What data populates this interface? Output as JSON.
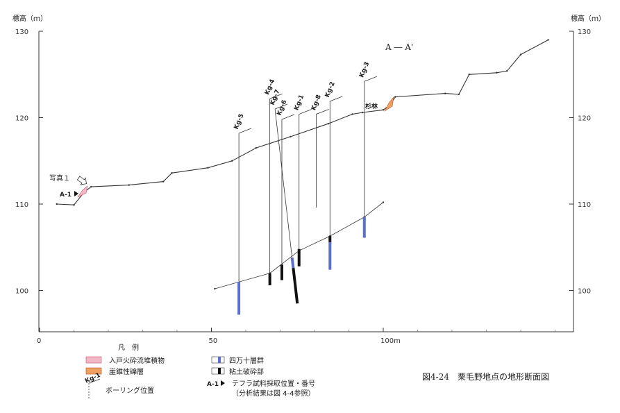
{
  "y_axis_label_left": "標高（ｍ）",
  "y_axis_label_right": "標高（ｍ）",
  "y_ticks": [
    "130",
    "120",
    "110",
    "100"
  ],
  "x_ticks": [
    "0",
    "50",
    "100m"
  ],
  "section_label": "A ― A'",
  "photo_label": "写真１",
  "sample_label": "A-1",
  "place_label": "杉林",
  "boreholes": [
    {
      "id": "Kg-5",
      "x": 58,
      "top": 118.2,
      "bottom": 97.2,
      "blue": [
        101,
        97.2
      ],
      "black": []
    },
    {
      "id": "Kg-4",
      "x": 67,
      "top": 122.2,
      "bottom": 100.6,
      "blue": [],
      "black": [
        102,
        100.6
      ]
    },
    {
      "id": "Kg-7",
      "x": 68.5,
      "top": 121.0,
      "bottom": 98.5,
      "blue": [
        103.8,
        102.6
      ],
      "black": [
        102.6,
        98.5
      ],
      "inclined_to": 75
    },
    {
      "id": "Kg-6",
      "x": 70.5,
      "top": 119.8,
      "bottom": 101.2,
      "blue": [],
      "black": [
        103,
        101.2
      ]
    },
    {
      "id": "Kg-1",
      "x": 75.5,
      "top": 120.4,
      "bottom": 102.8,
      "blue": [],
      "black": [
        104.8,
        102.8
      ]
    },
    {
      "id": "Kg-8",
      "x": 80.5,
      "top": 120.4,
      "bottom": 109.6,
      "blue": [],
      "black": []
    },
    {
      "id": "Kg-2",
      "x": 84.5,
      "top": 121.9,
      "bottom": 102.4,
      "blue": [
        105.6,
        102.4
      ],
      "black": [
        106.3,
        105.6
      ]
    },
    {
      "id": "Kg-3",
      "x": 94.5,
      "top": 124.2,
      "bottom": 106.1,
      "blue": [
        108.5,
        106.1
      ],
      "black": []
    }
  ],
  "legend": {
    "title": "凡　例",
    "items": [
      {
        "key": "pumice_flow",
        "label": "入戸火砕流堆積物",
        "color": "#f2b8c6"
      },
      {
        "key": "talus",
        "label": "崖錐性礫層",
        "color": "#f0a060"
      },
      {
        "key": "boring",
        "label": "ボーリング位置"
      },
      {
        "key": "shimanto",
        "label": "四万十層群",
        "color": "#5a6fd0"
      },
      {
        "key": "clay",
        "label": "粘土破砕部",
        "color": "#111111"
      },
      {
        "key": "tephra",
        "label": "テフラ試料採取位置・番号"
      },
      {
        "key": "tephra_note",
        "label": "（分析結果は図 4-4参照）"
      }
    ]
  },
  "caption": "図4-24　栗毛野地点の地形断面図",
  "chart_data": {
    "type": "line",
    "xlabel": "",
    "ylabel": "標高（ｍ）",
    "xlim": [
      0,
      150
    ],
    "ylim": [
      96,
      131
    ],
    "series": [
      {
        "x": [
          5,
          10,
          13,
          15,
          26,
          36,
          38.5,
          49,
          56,
          63,
          73,
          84,
          91,
          94,
          100,
          102,
          103.5,
          118,
          122,
          125,
          133,
          136,
          140,
          148
        ],
        "y": [
          110.0,
          109.9,
          111.4,
          112.0,
          112.2,
          112.6,
          113.6,
          114.2,
          115.0,
          116.5,
          117.8,
          119.3,
          120.4,
          120.6,
          120.9,
          121.5,
          122.4,
          122.8,
          122.7,
          125.0,
          125.2,
          125.4,
          127.3,
          129.0
        ]
      },
      {
        "x": [
          51,
          67,
          75.5,
          84.5,
          94.5,
          100
        ],
        "y": [
          100.2,
          102.0,
          104.6,
          106.3,
          108.5,
          110.2
        ]
      }
    ]
  }
}
